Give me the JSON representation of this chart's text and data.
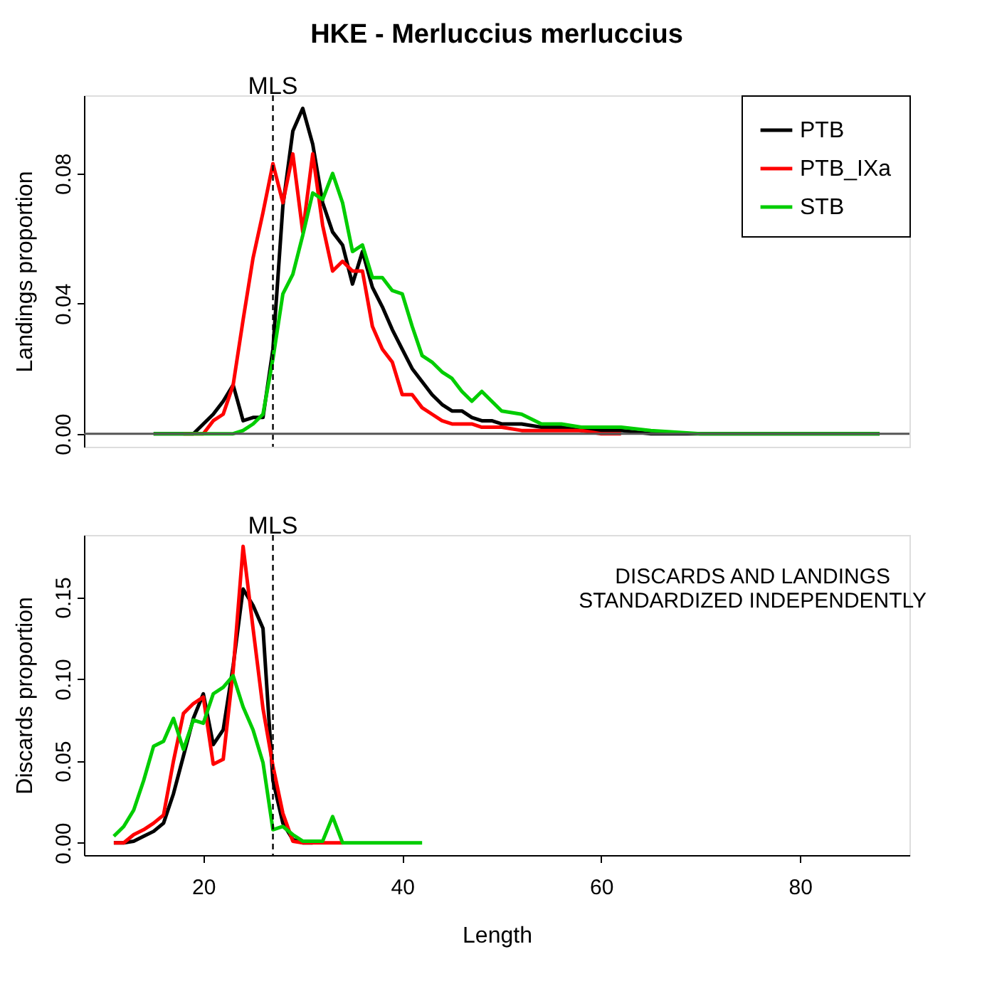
{
  "chart_data": [
    {
      "type": "line",
      "title": "HKE - Merluccius merluccius",
      "ylabel": "Landings proportion",
      "xlim": [
        8,
        91
      ],
      "ylim": [
        -0.004,
        0.104
      ],
      "yticks": [
        {
          "value": 0,
          "label": "0.00"
        },
        {
          "value": 0.04,
          "label": "0.04"
        },
        {
          "value": 0.08,
          "label": "0.08"
        }
      ],
      "tick_labels": "y",
      "legend": "top right",
      "grid": false,
      "marker": "none",
      "line_style": "solid",
      "ref_lines": [
        {
          "axis": "x",
          "value": 27,
          "label": "MLS",
          "line_style": "dashed",
          "color": "#000000"
        },
        {
          "axis": "y",
          "value": 0,
          "color": "#555555",
          "line_style": "solid"
        }
      ],
      "series": [
        {
          "name": "PTB",
          "color": "#000000",
          "x": [
            15,
            16,
            17,
            18,
            19,
            20,
            21,
            22,
            23,
            24,
            25,
            26,
            27,
            28,
            29,
            30,
            31,
            32,
            33,
            34,
            35,
            36,
            37,
            38,
            39,
            40,
            41,
            42,
            43,
            44,
            45,
            46,
            47,
            48,
            49,
            50,
            52,
            54,
            56,
            58,
            60,
            62,
            65,
            70,
            75,
            80,
            85,
            88
          ],
          "values": [
            0,
            0,
            0,
            0,
            0,
            0.003,
            0.006,
            0.01,
            0.015,
            0.004,
            0.005,
            0.005,
            0.026,
            0.07,
            0.093,
            0.1,
            0.089,
            0.071,
            0.062,
            0.058,
            0.046,
            0.056,
            0.045,
            0.039,
            0.032,
            0.026,
            0.02,
            0.016,
            0.012,
            0.009,
            0.007,
            0.007,
            0.005,
            0.004,
            0.004,
            0.003,
            0.003,
            0.002,
            0.002,
            0.001,
            0.001,
            0.001,
            0,
            0,
            0,
            0,
            0,
            0
          ]
        },
        {
          "name": "PTB_IXa",
          "color": "#ff0000",
          "x": [
            18,
            19,
            20,
            21,
            22,
            23,
            24,
            25,
            26,
            27,
            28,
            29,
            30,
            31,
            32,
            33,
            34,
            35,
            36,
            37,
            38,
            39,
            40,
            41,
            42,
            43,
            44,
            45,
            46,
            47,
            48,
            49,
            50,
            52,
            54,
            56,
            58,
            60,
            62
          ],
          "values": [
            0,
            0,
            0,
            0.004,
            0.006,
            0.015,
            0.035,
            0.054,
            0.068,
            0.083,
            0.071,
            0.086,
            0.062,
            0.086,
            0.064,
            0.05,
            0.053,
            0.05,
            0.05,
            0.033,
            0.026,
            0.022,
            0.012,
            0.012,
            0.008,
            0.006,
            0.004,
            0.003,
            0.003,
            0.003,
            0.002,
            0.002,
            0.002,
            0.001,
            0.001,
            0.001,
            0.001,
            0,
            0
          ]
        },
        {
          "name": "STB",
          "color": "#00cd00",
          "x": [
            15,
            16,
            17,
            18,
            19,
            20,
            21,
            22,
            23,
            24,
            25,
            26,
            27,
            28,
            29,
            30,
            31,
            32,
            33,
            34,
            35,
            36,
            37,
            38,
            39,
            40,
            41,
            42,
            43,
            44,
            45,
            46,
            47,
            48,
            49,
            50,
            52,
            54,
            56,
            58,
            60,
            62,
            65,
            70,
            75,
            80,
            85,
            88
          ],
          "values": [
            0,
            0,
            0,
            0,
            0,
            0,
            0,
            0,
            0,
            0.001,
            0.003,
            0.006,
            0.023,
            0.043,
            0.049,
            0.061,
            0.074,
            0.072,
            0.08,
            0.071,
            0.056,
            0.058,
            0.048,
            0.048,
            0.044,
            0.043,
            0.033,
            0.024,
            0.022,
            0.019,
            0.017,
            0.013,
            0.01,
            0.013,
            0.01,
            0.007,
            0.006,
            0.003,
            0.003,
            0.002,
            0.002,
            0.002,
            0.001,
            0,
            0,
            0,
            0,
            0
          ]
        }
      ]
    },
    {
      "type": "line",
      "xlabel": "Length",
      "ylabel": "Discards proportion",
      "xlim": [
        8,
        91
      ],
      "xticks": [
        20,
        40,
        60,
        80
      ],
      "ylim": [
        -0.0075,
        0.188
      ],
      "yticks": [
        {
          "value": 0,
          "label": "0.00"
        },
        {
          "value": 0.05,
          "label": "0.05"
        },
        {
          "value": 0.1,
          "label": "0.10"
        },
        {
          "value": 0.15,
          "label": "0.15"
        }
      ],
      "grid": false,
      "marker": "none",
      "line_style": "solid",
      "annotations": [
        "DISCARDS AND LANDINGS\nSTANDARDIZED INDEPENDENTLY"
      ],
      "ref_lines": [
        {
          "axis": "x",
          "value": 27,
          "label": "MLS",
          "line_style": "dashed",
          "color": "#000000"
        }
      ],
      "series": [
        {
          "color": "#000000",
          "x": [
            11,
            12,
            13,
            14,
            15,
            16,
            17,
            18,
            19,
            20,
            21,
            22,
            23,
            24,
            25,
            26,
            27,
            28,
            29,
            30,
            31
          ],
          "values": [
            0,
            0,
            0.001,
            0.004,
            0.007,
            0.012,
            0.03,
            0.053,
            0.076,
            0.091,
            0.06,
            0.069,
            0.108,
            0.155,
            0.145,
            0.131,
            0.038,
            0.012,
            0.002,
            0,
            0
          ]
        },
        {
          "color": "#ff0000",
          "x": [
            11,
            12,
            13,
            14,
            15,
            16,
            17,
            18,
            19,
            20,
            21,
            22,
            23,
            24,
            25,
            26,
            27,
            28,
            29,
            30,
            31,
            32,
            33,
            34
          ],
          "values": [
            0,
            0,
            0.005,
            0.008,
            0.012,
            0.017,
            0.05,
            0.079,
            0.085,
            0.089,
            0.048,
            0.051,
            0.105,
            0.181,
            0.131,
            0.082,
            0.047,
            0.018,
            0.001,
            0,
            0,
            0,
            0,
            0
          ]
        },
        {
          "color": "#00cd00",
          "x": [
            11,
            12,
            13,
            14,
            15,
            16,
            17,
            18,
            19,
            20,
            21,
            22,
            23,
            24,
            25,
            26,
            27,
            28,
            29,
            30,
            31,
            32,
            33,
            34,
            35,
            36,
            37,
            38,
            39,
            40,
            41,
            42
          ],
          "values": [
            0.004,
            0.01,
            0.02,
            0.038,
            0.059,
            0.062,
            0.076,
            0.057,
            0.075,
            0.073,
            0.091,
            0.095,
            0.102,
            0.083,
            0.069,
            0.049,
            0.008,
            0.01,
            0.005,
            0.001,
            0.001,
            0.001,
            0.016,
            0,
            0,
            0,
            0,
            0,
            0,
            0,
            0,
            0
          ]
        }
      ]
    }
  ]
}
